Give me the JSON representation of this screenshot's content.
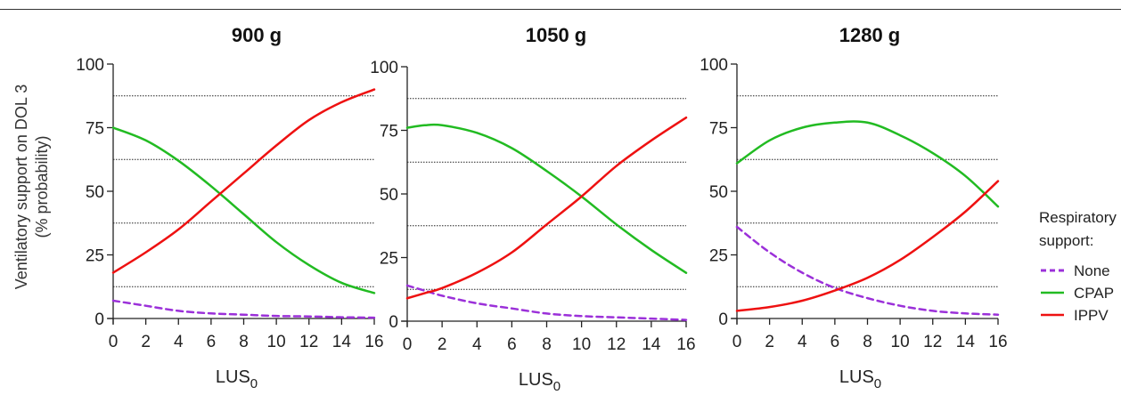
{
  "chart_data": [
    {
      "type": "line",
      "title": "900 g",
      "xlabel": "LUS",
      "xlabel_subscript": "0",
      "ylabel_line1": "Ventilatory support on DOL 3",
      "ylabel_line2": "(% probability)",
      "xlim": [
        0,
        16
      ],
      "ylim": [
        0,
        100
      ],
      "xticks": [
        0,
        2,
        4,
        6,
        8,
        10,
        12,
        14,
        16
      ],
      "yticks": [
        0,
        25,
        50,
        75,
        100
      ],
      "gridlines": [
        12.5,
        37.5,
        62.5,
        87.5
      ],
      "x": [
        0,
        2,
        4,
        6,
        8,
        10,
        12,
        14,
        16
      ],
      "series": [
        {
          "name": "None",
          "values": [
            7,
            5,
            3,
            2,
            1.5,
            1,
            0.8,
            0.5,
            0.3
          ]
        },
        {
          "name": "CPAP",
          "values": [
            75,
            70,
            62,
            52,
            41,
            30,
            21,
            14,
            10
          ]
        },
        {
          "name": "IPPV",
          "values": [
            18,
            26,
            35,
            46,
            57,
            68,
            78,
            85,
            90
          ]
        }
      ]
    },
    {
      "type": "line",
      "title": "1050 g",
      "xlabel": "LUS",
      "xlabel_subscript": "0",
      "xlim": [
        0,
        16
      ],
      "ylim": [
        0,
        100
      ],
      "xticks": [
        0,
        2,
        4,
        6,
        8,
        10,
        12,
        14,
        16
      ],
      "yticks": [
        0,
        25,
        50,
        75,
        100
      ],
      "gridlines": [
        12.5,
        37.5,
        62.5,
        87.5
      ],
      "x": [
        0,
        1,
        2,
        4,
        6,
        8,
        10,
        12,
        14,
        16
      ],
      "series": [
        {
          "name": "None",
          "values": [
            14,
            12,
            10,
            7,
            5,
            3,
            2,
            1.5,
            1,
            0.5
          ]
        },
        {
          "name": "CPAP",
          "values": [
            76,
            77,
            77,
            74,
            68,
            59,
            49,
            38,
            28,
            19
          ]
        },
        {
          "name": "IPPV",
          "values": [
            9,
            11,
            13,
            19,
            27,
            38,
            49,
            61,
            71,
            80
          ]
        }
      ]
    },
    {
      "type": "line",
      "title": "1280 g",
      "xlabel": "LUS",
      "xlabel_subscript": "0",
      "xlim": [
        0,
        16
      ],
      "ylim": [
        0,
        100
      ],
      "xticks": [
        0,
        2,
        4,
        6,
        8,
        10,
        12,
        14,
        16
      ],
      "yticks": [
        0,
        25,
        50,
        75,
        100
      ],
      "gridlines": [
        12.5,
        37.5,
        62.5,
        87.5
      ],
      "x": [
        0,
        2,
        4,
        6,
        8,
        10,
        12,
        14,
        16
      ],
      "series": [
        {
          "name": "None",
          "values": [
            36,
            26,
            18,
            12,
            8,
            5,
            3,
            2,
            1.5
          ]
        },
        {
          "name": "CPAP",
          "values": [
            61,
            70,
            75,
            77,
            77,
            72,
            65,
            56,
            44
          ]
        },
        {
          "name": "IPPV",
          "values": [
            3,
            4.5,
            7,
            11,
            16,
            23,
            32,
            42,
            54
          ]
        }
      ]
    }
  ],
  "legend": {
    "title_line1": "Respiratory",
    "title_line2": "support:",
    "items": [
      {
        "label": "None",
        "color": "#9b30d9",
        "dashed": true
      },
      {
        "label": "CPAP",
        "color": "#22bb22",
        "dashed": false
      },
      {
        "label": "IPPV",
        "color": "#ee1111",
        "dashed": false
      }
    ]
  },
  "colors": {
    "None": "#9b30d9",
    "CPAP": "#22bb22",
    "IPPV": "#ee1111"
  }
}
